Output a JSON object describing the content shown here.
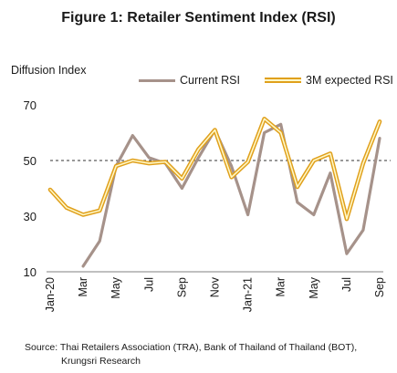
{
  "chart_data": {
    "type": "line",
    "title": "Figure 1: Retailer Sentiment Index (RSI)",
    "ylabel": "Diffusion Index",
    "xlabel": "",
    "ylim": [
      10,
      70
    ],
    "yticks": [
      10,
      30,
      50,
      70
    ],
    "x_tick_labels": [
      "Jan-20",
      "Mar",
      "May",
      "Jul",
      "Sep",
      "Nov",
      "Jan-21",
      "Mar",
      "May",
      "Jul",
      "Sep"
    ],
    "x": [
      "Jan-20",
      "Feb-20",
      "Mar-20",
      "Apr-20",
      "May-20",
      "Jun-20",
      "Jul-20",
      "Aug-20",
      "Sep-20",
      "Oct-20",
      "Nov-20",
      "Dec-20",
      "Jan-21",
      "Feb-21",
      "Mar-21",
      "Apr-21",
      "May-21",
      "Jun-21",
      "Jul-21",
      "Aug-21",
      "Sep-21"
    ],
    "reference_line": {
      "y": 50,
      "style": "dashed"
    },
    "grid": false,
    "legend_position": "top",
    "series": [
      {
        "name": "Current RSI",
        "color": "#a6928a",
        "values": [
          null,
          null,
          12,
          21,
          48,
          59,
          51,
          49,
          40,
          51,
          61,
          48,
          30.5,
          60,
          63,
          35,
          30.5,
          45.5,
          16.5,
          25,
          58
        ]
      },
      {
        "name": "3M expected RSI",
        "color": "#e0a01c",
        "values": [
          39.5,
          33,
          30.5,
          32,
          48,
          50,
          49,
          49.5,
          43.5,
          54,
          61,
          44,
          49.5,
          65,
          60,
          40.5,
          50,
          52.5,
          29,
          49,
          64
        ]
      }
    ]
  },
  "source": {
    "line1": "Source:  Thai Retailers Association (TRA), Bank of Thailand of Thailand (BOT),",
    "line2": "Krungsri Research"
  }
}
